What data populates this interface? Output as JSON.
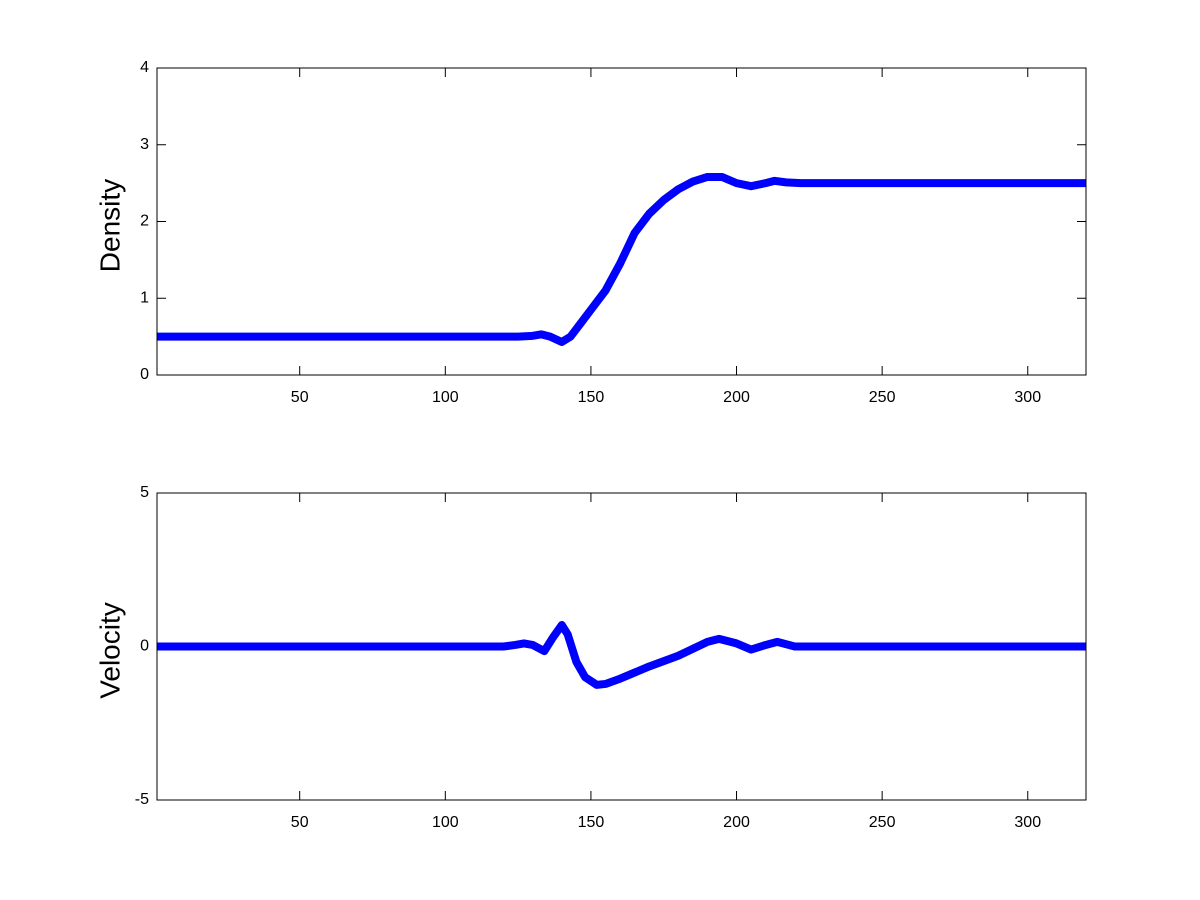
{
  "chart_data": [
    {
      "type": "line",
      "ylabel": "Density",
      "color": "#0000ff",
      "x": [
        1,
        20,
        40,
        60,
        80,
        100,
        120,
        125,
        130,
        133,
        136,
        140,
        143,
        147,
        150,
        155,
        160,
        165,
        170,
        175,
        180,
        185,
        190,
        195,
        200,
        205,
        210,
        213,
        217,
        222,
        230,
        260,
        290,
        320
      ],
      "values": [
        0.5,
        0.5,
        0.5,
        0.5,
        0.5,
        0.5,
        0.5,
        0.5,
        0.51,
        0.53,
        0.5,
        0.43,
        0.5,
        0.7,
        0.85,
        1.1,
        1.45,
        1.85,
        2.1,
        2.28,
        2.42,
        2.52,
        2.58,
        2.58,
        2.5,
        2.46,
        2.5,
        2.53,
        2.51,
        2.5,
        2.5,
        2.5,
        2.5,
        2.5
      ],
      "xlim": [
        1,
        320
      ],
      "ylim": [
        0,
        4
      ],
      "xticks": [
        50,
        100,
        150,
        200,
        250,
        300
      ],
      "yticks": [
        0,
        1,
        2,
        3,
        4
      ]
    },
    {
      "type": "line",
      "ylabel": "Velocity",
      "color": "#0000ff",
      "x": [
        1,
        20,
        40,
        60,
        80,
        100,
        120,
        124,
        127,
        130,
        134,
        137,
        140,
        142,
        145,
        148,
        152,
        155,
        160,
        170,
        180,
        190,
        194,
        200,
        205,
        210,
        214,
        220,
        230,
        260,
        290,
        320
      ],
      "values": [
        0,
        0,
        0,
        0,
        0,
        0,
        0,
        0.05,
        0.1,
        0.05,
        -0.15,
        0.3,
        0.7,
        0.4,
        -0.5,
        -1.0,
        -1.25,
        -1.22,
        -1.05,
        -0.65,
        -0.3,
        0.15,
        0.25,
        0.1,
        -0.1,
        0.05,
        0.15,
        0,
        0,
        0,
        0,
        0
      ],
      "xlim": [
        1,
        320
      ],
      "ylim": [
        -5,
        5
      ],
      "xticks": [
        50,
        100,
        150,
        200,
        250,
        300
      ],
      "yticks": [
        -5,
        0,
        5
      ]
    }
  ]
}
